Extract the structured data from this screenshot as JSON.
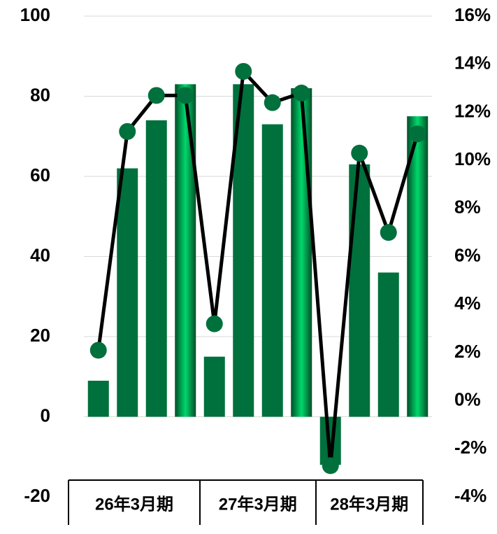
{
  "chart_data": {
    "type": "bar-line",
    "categories": [
      null,
      null,
      null,
      null,
      null,
      null,
      null,
      null,
      null,
      null,
      null,
      null
    ],
    "groups": [
      {
        "label": "26年3月期",
        "span": 4
      },
      {
        "label": "27年3月期",
        "span": 4
      },
      {
        "label": "28年3月期",
        "span": 4
      }
    ],
    "series": [
      {
        "type": "bar",
        "color": "#00703c",
        "values": [
          9,
          62,
          74,
          83,
          15,
          83,
          73,
          82,
          -12,
          63,
          36,
          75
        ],
        "colors": [
          "#00703c",
          "#00703c",
          "#00703c",
          "#00c262",
          "#00703c",
          "#00703c",
          "#00703c",
          "#00c262",
          "#00703c",
          "#00703c",
          "#00703c",
          "#00c262"
        ]
      },
      {
        "type": "line",
        "axis": "y2",
        "color": "#000000",
        "marker_color": "#00703c",
        "values": [
          2.1,
          11.2,
          12.7,
          12.7,
          3.2,
          13.7,
          12.4,
          12.8,
          -2.7,
          10.3,
          7.0,
          11.1
        ]
      }
    ],
    "ylim": [
      -20,
      100
    ],
    "yticks": [
      -20,
      0,
      20,
      40,
      60,
      80,
      100
    ],
    "y2lim": [
      -4,
      16
    ],
    "y2ticks": [
      {
        "value": -4,
        "label": "-4%"
      },
      {
        "value": -2,
        "label": "-2%"
      },
      {
        "value": 0,
        "label": "0%"
      },
      {
        "value": 2,
        "label": "2%"
      },
      {
        "value": 4,
        "label": "4%"
      },
      {
        "value": 6,
        "label": "6%"
      },
      {
        "value": 8,
        "label": "8%"
      },
      {
        "value": 10,
        "label": "10%"
      },
      {
        "value": 12,
        "label": "12%"
      },
      {
        "value": 14,
        "label": "14%"
      },
      {
        "value": 16,
        "label": "16%"
      }
    ],
    "grid": true
  }
}
